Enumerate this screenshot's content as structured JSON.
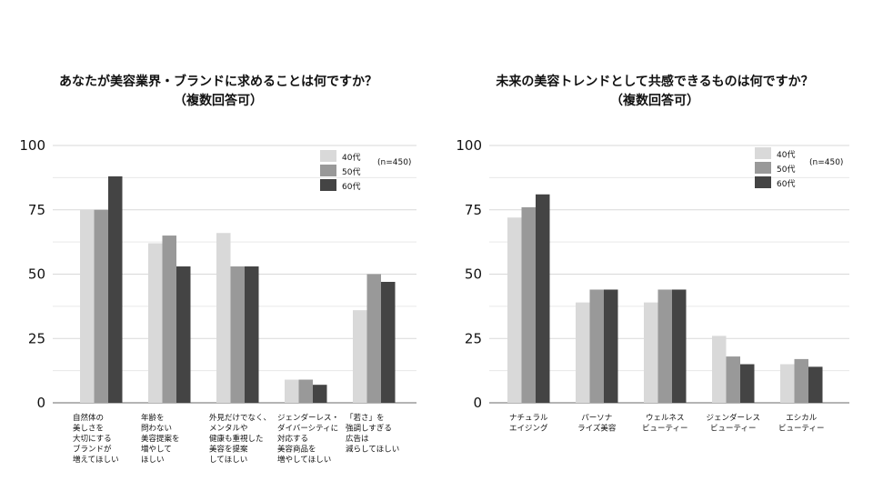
{
  "charts": [
    {
      "title_line1": "あなたが美容業界・ブランドに求めることは何ですか？",
      "title_line2": "（複数回答可）",
      "note": "(n=450)",
      "legend": [
        "40代",
        "50代",
        "60代"
      ]
    },
    {
      "title_line1": "未来の美容トレンドとして共感できるものは何ですか？",
      "title_line2": "（複数回答可）",
      "note": "(n=450)",
      "legend": [
        "40代",
        "50代",
        "60代"
      ]
    }
  ],
  "colors": {
    "40代": "#d9d9d9",
    "50代": "#999999",
    "60代": "#444444"
  },
  "chart_data": [
    {
      "type": "bar",
      "title": "あなたが美容業界・ブランドに求めることは何ですか？（複数回答可）",
      "categories": [
        "自然体の\n美しさを\n大切にする\nブランドが\n増えてほしい",
        "年齢を\n問わない\n美容提案を\n増やして\nほしい",
        "外見だけでなく、\nメンタルや\n健康も重視した\n美容を提案\nしてほしい",
        "ジェンダーレス・\nダイバーシティに\n対応する\n美容商品を\n増やしてほしい",
        "「若さ」を\n強調しすぎる\n広告は\n減らしてほしい"
      ],
      "series": [
        {
          "name": "40代",
          "values": [
            75,
            62,
            66,
            9,
            36
          ]
        },
        {
          "name": "50代",
          "values": [
            75,
            65,
            53,
            9,
            50
          ]
        },
        {
          "name": "60代",
          "values": [
            88,
            53,
            53,
            7,
            47
          ]
        }
      ],
      "yticks": [
        0,
        25,
        50,
        75,
        100
      ],
      "ylim": [
        0,
        100
      ],
      "grid": true,
      "legend_position": "top-right"
    },
    {
      "type": "bar",
      "title": "未来の美容トレンドとして共感できるものは何ですか？（複数回答可）",
      "categories": [
        "ナチュラル\nエイジング",
        "パーソナ\nライズ美容",
        "ウェルネス\nビューティー",
        "ジェンダーレス\nビューティー",
        "エシカル\nビューティー"
      ],
      "series": [
        {
          "name": "40代",
          "values": [
            72,
            39,
            39,
            26,
            15
          ]
        },
        {
          "name": "50代",
          "values": [
            76,
            44,
            44,
            18,
            17
          ]
        },
        {
          "name": "60代",
          "values": [
            81,
            44,
            44,
            15,
            14
          ]
        }
      ],
      "yticks": [
        0,
        25,
        50,
        75,
        100
      ],
      "ylim": [
        0,
        100
      ],
      "grid": true,
      "legend_position": "top-right"
    }
  ]
}
